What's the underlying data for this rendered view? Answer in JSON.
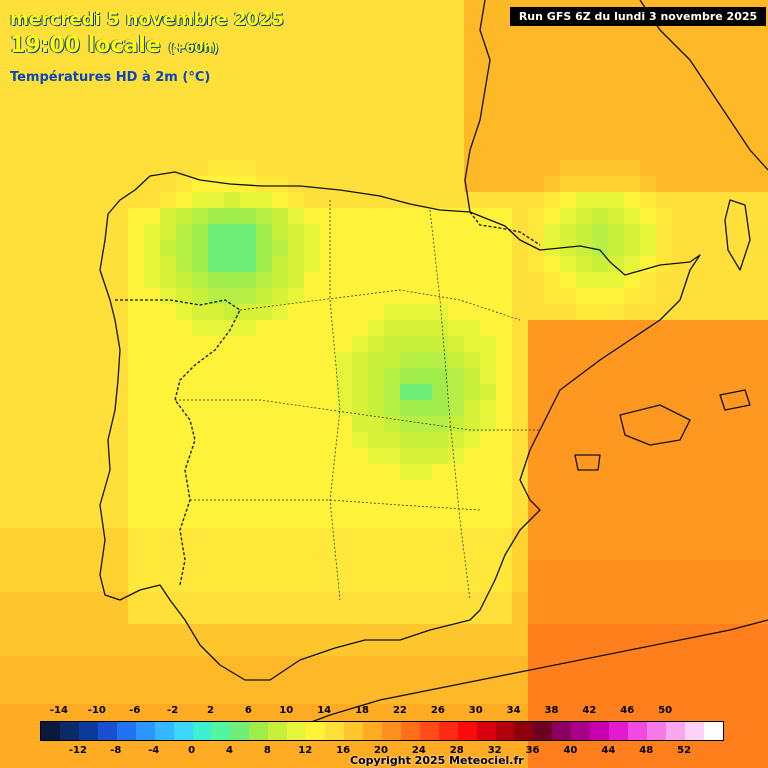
{
  "header": {
    "date": "mercredi 5 novembre 2025",
    "time": "19:00 locale",
    "offset": "(+60h)",
    "variable": "Températures HD à 2m (°C)"
  },
  "run_info": "Run GFS 6Z du lundi 3 novembre 2025",
  "copyright": "Copyright 2025 Meteociel.fr",
  "legend": {
    "colors": [
      "#0a1a3c",
      "#0b2a6a",
      "#0a3a9c",
      "#1b4fd0",
      "#1f72f0",
      "#2c96ff",
      "#34b8ff",
      "#3dd6ff",
      "#3df0d0",
      "#52f5a0",
      "#70ee7a",
      "#9fec4a",
      "#c8f03a",
      "#e7f53a",
      "#fff23a",
      "#ffe03a",
      "#ffc62e",
      "#ffac24",
      "#ff8f1e",
      "#ff6f1a",
      "#ff4c18",
      "#ff2a14",
      "#ff0a0a",
      "#d8000e",
      "#b3000d",
      "#8c000c",
      "#6e0022",
      "#8a0060",
      "#a8008a",
      "#c800b0",
      "#e21ad0",
      "#f04ae0",
      "#f57ae8",
      "#f9a8ef",
      "#fcd2f6",
      "#ffffff"
    ],
    "top_labels": [
      "-14",
      "-10",
      "-6",
      "-2",
      "2",
      "6",
      "10",
      "14",
      "18",
      "22",
      "26",
      "30",
      "34",
      "38",
      "42",
      "46",
      "50"
    ],
    "bottom_labels": [
      "-12",
      "-8",
      "-4",
      "0",
      "4",
      "8",
      "12",
      "16",
      "20",
      "24",
      "28",
      "32",
      "36",
      "40",
      "44",
      "48",
      "52"
    ]
  }
}
